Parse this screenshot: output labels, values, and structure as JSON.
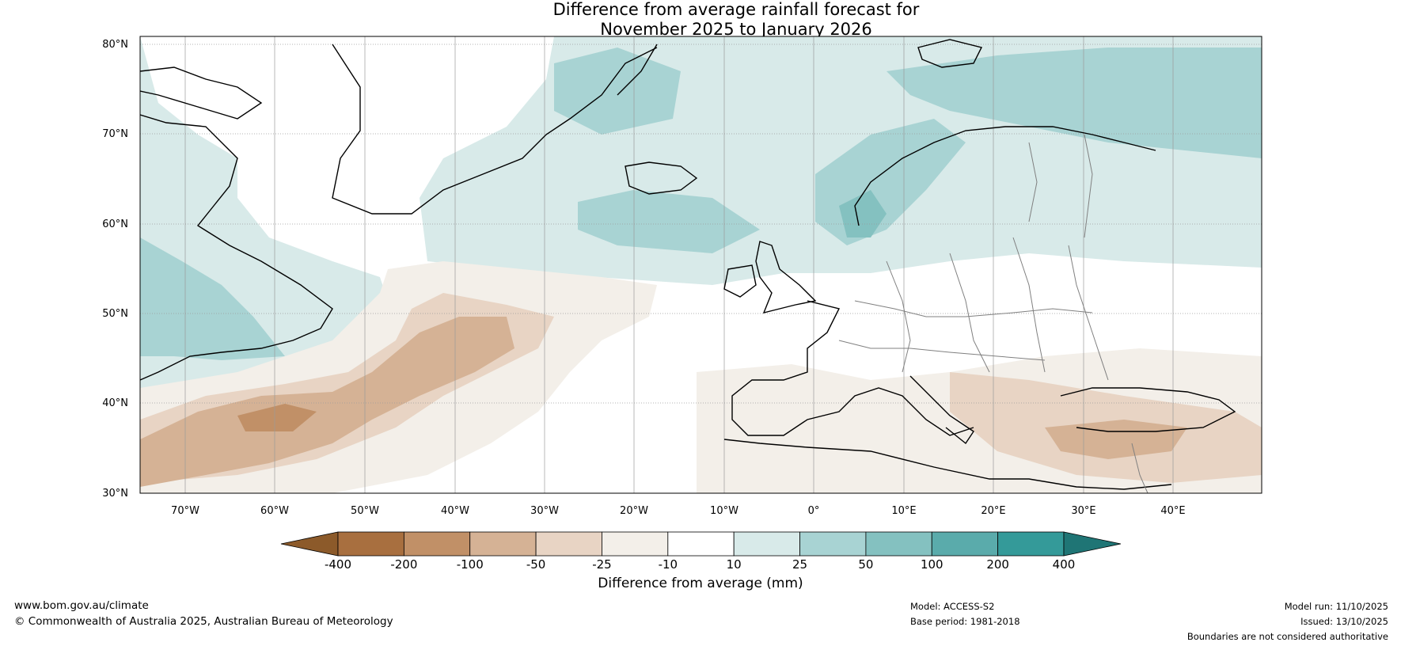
{
  "title": {
    "line1": "Difference from average rainfall forecast for",
    "line2": "November 2025 to January 2026"
  },
  "map": {
    "lat_labels": [
      "80°N",
      "70°N",
      "60°N",
      "50°N",
      "40°N",
      "30°N"
    ],
    "lon_labels": [
      "70°W",
      "60°W",
      "50°W",
      "40°W",
      "30°W",
      "20°W",
      "10°W",
      "0°",
      "10°E",
      "20°E",
      "30°E",
      "40°E"
    ]
  },
  "colorbar": {
    "title": "Difference from average (mm)",
    "ticks": [
      "-400",
      "-200",
      "-100",
      "-50",
      "-25",
      "-10",
      "10",
      "25",
      "50",
      "100",
      "200",
      "400"
    ],
    "colors": [
      "#8c5a2a",
      "#a86f3f",
      "#c19067",
      "#d5b295",
      "#e8d4c4",
      "#f3efe9",
      "#ffffff",
      "#d8eae9",
      "#a8d3d3",
      "#84c1c0",
      "#5aabab",
      "#349a99",
      "#1f7575"
    ]
  },
  "footer": {
    "url": "www.bom.gov.au/climate",
    "copyright": "© Commonwealth of Australia 2025, Australian Bureau of Meteorology",
    "model": "Model: ACCESS-S2",
    "base_period": "Base period: 1981-2018",
    "model_run": "Model run: 11/10/2025",
    "issued": "Issued: 13/10/2025",
    "disclaimer": "Boundaries are not considered authoritative"
  }
}
